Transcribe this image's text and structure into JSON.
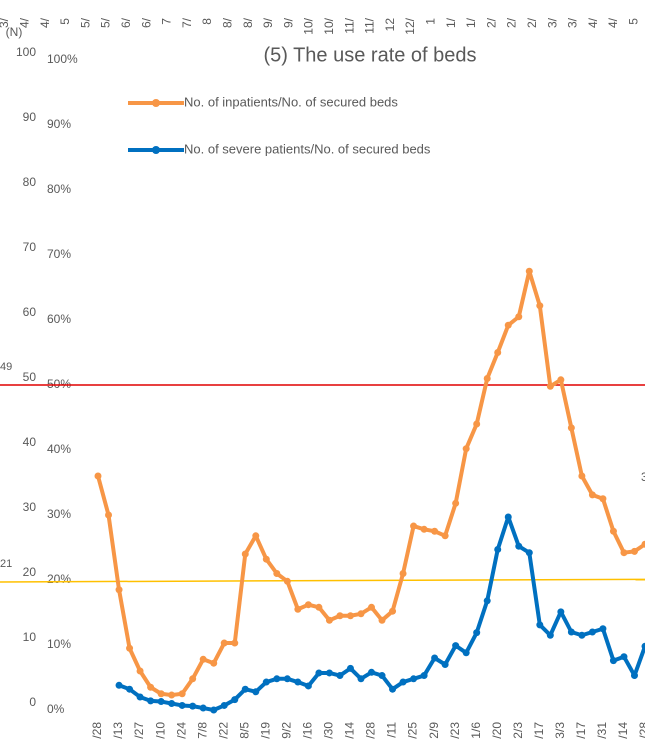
{
  "chart_data": {
    "type": "line",
    "title": "(5) The use rate of beds",
    "left_axis_label": "(N)",
    "categories": [
      "/28",
      null,
      "/13",
      null,
      "/27",
      null,
      "/10",
      null,
      "/24",
      null,
      "7/8",
      null,
      "/22",
      null,
      "8/5",
      null,
      "/19",
      null,
      "9/2",
      null,
      "/16",
      null,
      "/30",
      null,
      "/14",
      null,
      "/28",
      null,
      "/11",
      null,
      "/25",
      null,
      "2/9",
      null,
      "/23",
      null,
      "1/6",
      null,
      "/20",
      null,
      "2/3",
      null,
      "/17",
      null,
      "3/3",
      null,
      "/17",
      null,
      "/31",
      null,
      "/14",
      null,
      "/28"
    ],
    "top_labels": [
      "3/",
      "4/",
      "4/",
      "5",
      "5/",
      "5/",
      "6/",
      "6/",
      "7",
      "7/",
      "8",
      "8/",
      "8/",
      "9/",
      "9/",
      "10/",
      "10/",
      "11/",
      "11/",
      "12",
      "12/",
      "1",
      "1/",
      "1/",
      "2/",
      "2/",
      "2/",
      "3/",
      "3/",
      "4/",
      "4/",
      "5"
    ],
    "series": [
      {
        "name": "No. of inpatients/No. of secured beds",
        "color": "#f79646",
        "values": [
          36,
          30,
          18.5,
          9.5,
          6,
          3.5,
          2.5,
          2.3,
          2.5,
          4.8,
          7.8,
          7.2,
          10.3,
          10.3,
          24,
          26.8,
          23.2,
          21,
          19.8,
          15.5,
          16.2,
          15.8,
          13.8,
          14.5,
          14.5,
          14.8,
          15.8,
          13.8,
          15.2,
          21,
          28.3,
          27.8,
          27.5,
          26.8,
          31.8,
          40.2,
          44,
          51,
          55,
          59.2,
          60.5,
          67.5,
          62.2,
          49.8,
          50.8,
          43.4,
          36,
          33.1,
          32.5,
          27.5,
          24.2,
          24.4,
          25.5
        ]
      },
      {
        "name": "No. of severe patients/No. of secured beds",
        "color": "#0070c0",
        "values": [
          null,
          null,
          3.8,
          3.2,
          2,
          1.4,
          1.3,
          1,
          0.7,
          0.6,
          0.3,
          0,
          0.7,
          1.6,
          3.2,
          2.8,
          4.3,
          4.8,
          4.8,
          4.3,
          3.7,
          5.7,
          5.7,
          5.3,
          6.4,
          4.8,
          5.8,
          5.3,
          3.2,
          4.3,
          4.8,
          5.3,
          8,
          7,
          9.9,
          8.8,
          11.9,
          16.8,
          24.7,
          29.7,
          25.2,
          24.2,
          13.1,
          11.5,
          15.1,
          12,
          11.5,
          12,
          12.5,
          7.6,
          8.2,
          5.3,
          9.8
        ]
      }
    ],
    "ylim": [
      0,
      100
    ],
    "yticks": [
      {
        "value": 0,
        "label": "0%"
      },
      {
        "value": 10,
        "label": "10%"
      },
      {
        "value": 20,
        "label": "20%"
      },
      {
        "value": 30,
        "label": "30%"
      },
      {
        "value": 40,
        "label": "40%"
      },
      {
        "value": 50,
        "label": "50%"
      },
      {
        "value": 60,
        "label": "60%"
      },
      {
        "value": 70,
        "label": "70%"
      },
      {
        "value": 80,
        "label": "80%"
      },
      {
        "value": 90,
        "label": "90%"
      },
      {
        "value": 100,
        "label": "100%"
      }
    ],
    "y2lim": [
      0,
      100
    ],
    "y2ticks": [
      0,
      10,
      20,
      30,
      40,
      50,
      60,
      70,
      80,
      90,
      100
    ],
    "reference_lines": [
      {
        "color": "#e00000",
        "from": 50,
        "to": 50,
        "label": "49"
      },
      {
        "color": "#ffc000",
        "from": 19.7,
        "to": 20.1,
        "label": "21"
      }
    ],
    "edge_label": "3"
  }
}
